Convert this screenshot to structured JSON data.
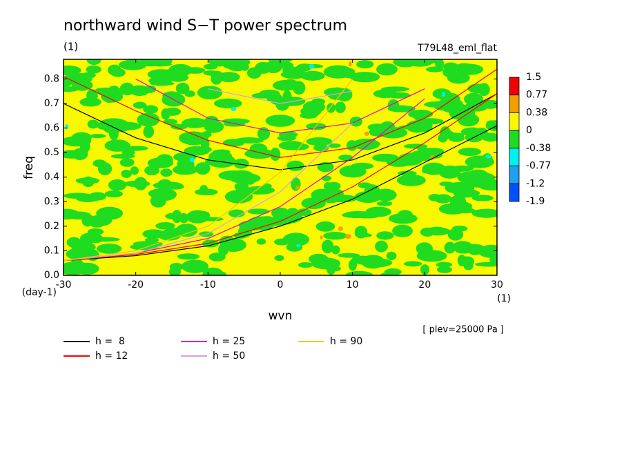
{
  "chart_data": {
    "type": "contour",
    "title": "northward wind S−T power spectrum",
    "subtitle": "(1)",
    "run_label": "T79L48_eml_flat",
    "level_note": "[ plev=25000 Pa ]",
    "x_label": "wvn",
    "y_label": "freq",
    "x_unit": "(1)",
    "y_unit": "(day-1)",
    "xlim": [
      -30,
      30
    ],
    "ylim": [
      0,
      0.88
    ],
    "xticks": [
      -30,
      -20,
      -10,
      0,
      10,
      20,
      30
    ],
    "yticks": [
      {
        "value": 0,
        "label": "0.0"
      },
      0.1,
      0.2,
      0.3,
      0.4,
      0.5,
      0.6,
      0.7,
      0.8
    ],
    "x": [
      -30,
      -20,
      -10,
      0,
      10,
      20,
      30
    ],
    "series": [
      {
        "name": "h =  8",
        "color": "#000000",
        "curves": [
          {
            "values": [
              0.7,
              0.56,
              0.47,
              0.43,
              0.47,
              0.58,
              0.74
            ]
          },
          {
            "values": [
              0.06,
              0.08,
              0.12,
              0.2,
              0.31,
              0.46,
              0.61
            ]
          }
        ]
      },
      {
        "name": "h = 12",
        "color": "#ff0000",
        "curves": [
          {
            "values": [
              0.81,
              0.67,
              0.55,
              0.48,
              0.52,
              0.64,
              0.84
            ]
          },
          {
            "values": [
              0.06,
              0.085,
              0.13,
              0.22,
              0.36,
              0.54,
              0.74
            ]
          }
        ]
      },
      {
        "name": "h = 25",
        "color": "#f000c0",
        "curves": [
          {
            "values": [
              null,
              0.8,
              0.64,
              0.58,
              0.62,
              0.76,
              null
            ]
          },
          {
            "values": [
              0.06,
              0.09,
              0.15,
              0.28,
              0.48,
              0.72,
              null
            ]
          }
        ]
      },
      {
        "name": "h = 50",
        "color": "#d8a0e0",
        "curves": [
          {
            "values": [
              null,
              null,
              0.76,
              0.7,
              0.75,
              null,
              null
            ]
          },
          {
            "values": [
              0.06,
              0.09,
              0.17,
              0.34,
              0.62,
              null,
              null
            ]
          }
        ]
      },
      {
        "name": "h = 90",
        "color": "#f0c800",
        "curves": [
          {
            "values": [
              0.06,
              0.1,
              0.2,
              0.42,
              0.8,
              null,
              null
            ]
          }
        ]
      }
    ],
    "color_levels": [
      1.5,
      0.77,
      0.38,
      0,
      -0.38,
      -0.77,
      -1.2,
      -1.9
    ],
    "level_colors": [
      "#f00000",
      "#f0a000",
      "#f8f800",
      "#20dc20",
      "#00f0f0",
      "#20a0f0",
      "#0050ff"
    ]
  }
}
